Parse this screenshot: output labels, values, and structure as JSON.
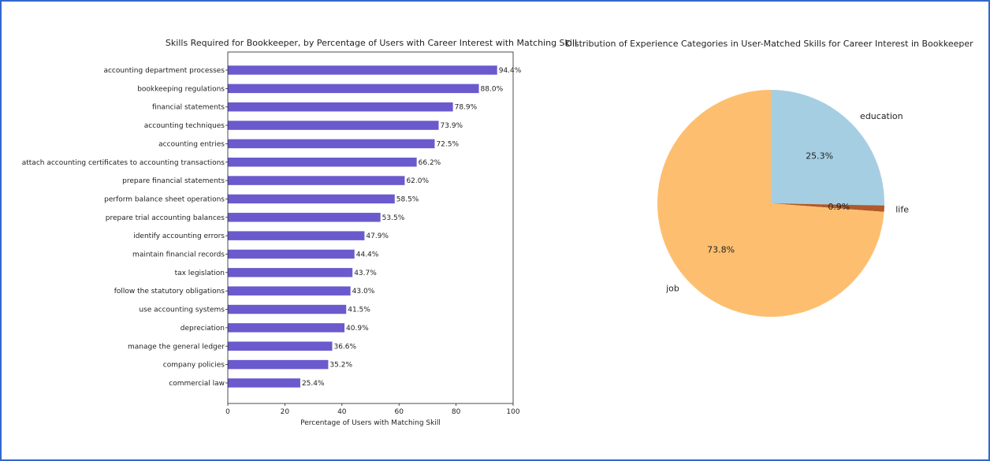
{
  "chart_data": [
    {
      "type": "bar",
      "orientation": "horizontal",
      "title": "Skills Required for Bookkeeper, by Percentage of Users with Career Interest with Matching Skill",
      "xlabel": "Percentage of Users with Matching Skill",
      "ylabel": "",
      "xlim": [
        0,
        100
      ],
      "xticks": [
        0,
        20,
        40,
        60,
        80,
        100
      ],
      "bar_color": "#6a5acd",
      "grid": false,
      "categories": [
        "accounting department processes",
        "bookkeeping regulations",
        "financial statements",
        "accounting techniques",
        "accounting entries",
        "attach accounting certificates to accounting transactions",
        "prepare financial statements",
        "perform balance sheet operations",
        "prepare trial accounting balances",
        "identify accounting errors",
        "maintain financial records",
        "tax legislation",
        "follow the statutory obligations",
        "use accounting systems",
        "depreciation",
        "manage the general ledger",
        "company policies",
        "commercial law"
      ],
      "values": [
        94.4,
        88.0,
        78.9,
        73.9,
        72.5,
        66.2,
        62.0,
        58.5,
        53.5,
        47.9,
        44.4,
        43.7,
        43.0,
        41.5,
        40.9,
        36.6,
        35.2,
        25.4
      ],
      "value_labels": [
        "94.4%",
        "88.0%",
        "78.9%",
        "73.9%",
        "72.5%",
        "66.2%",
        "62.0%",
        "58.5%",
        "53.5%",
        "47.9%",
        "44.4%",
        "43.7%",
        "43.0%",
        "41.5%",
        "40.9%",
        "36.6%",
        "35.2%",
        "25.4%"
      ]
    },
    {
      "type": "pie",
      "title": "Distribution of Experience Categories in User-Matched Skills for Career Interest in Bookkeeper",
      "slices": [
        {
          "label": "education",
          "value": 25.3,
          "pct_label": "25.3%",
          "color": "#a6cee3"
        },
        {
          "label": "life",
          "value": 0.9,
          "pct_label": "0.9%",
          "color": "#b15928"
        },
        {
          "label": "job",
          "value": 73.8,
          "pct_label": "73.8%",
          "color": "#fdbf6f"
        }
      ],
      "start_angle_deg": 90,
      "direction": "clockwise"
    }
  ]
}
